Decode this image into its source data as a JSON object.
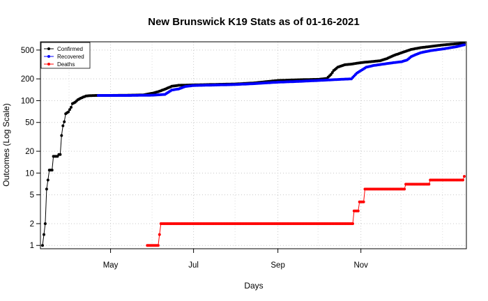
{
  "chart_data": {
    "type": "line",
    "title": "New Brunswick K19 Stats as of 01-16-2021",
    "xlabel": "Days",
    "ylabel": "Outcomes (Log Scale)",
    "y_scale": "log",
    "ylim": [
      0.9,
      650
    ],
    "xlim": [
      "2020-03-12",
      "2021-01-16"
    ],
    "grid": true,
    "legend_position": "top-left",
    "x_ticks": [
      {
        "date": "2020-05-01",
        "label": "May"
      },
      {
        "date": "2020-07-01",
        "label": "Jul"
      },
      {
        "date": "2020-09-01",
        "label": "Sep"
      },
      {
        "date": "2020-11-01",
        "label": "Nov"
      }
    ],
    "y_ticks": [
      1,
      2,
      5,
      10,
      20,
      50,
      100,
      200,
      500
    ],
    "series": [
      {
        "name": "Confirmed",
        "color": "#000000",
        "points": [
          [
            "2020-03-12",
            1
          ],
          [
            "2020-03-14",
            2
          ],
          [
            "2020-03-15",
            6
          ],
          [
            "2020-03-16",
            8
          ],
          [
            "2020-03-17",
            11
          ],
          [
            "2020-03-19",
            11
          ],
          [
            "2020-03-20",
            17
          ],
          [
            "2020-03-23",
            17
          ],
          [
            "2020-03-24",
            18
          ],
          [
            "2020-03-25",
            18
          ],
          [
            "2020-03-26",
            33
          ],
          [
            "2020-03-27",
            45
          ],
          [
            "2020-03-28",
            51
          ],
          [
            "2020-03-29",
            66
          ],
          [
            "2020-03-31",
            70
          ],
          [
            "2020-04-02",
            81
          ],
          [
            "2020-04-03",
            91
          ],
          [
            "2020-04-05",
            95
          ],
          [
            "2020-04-07",
            103
          ],
          [
            "2020-04-09",
            108
          ],
          [
            "2020-04-11",
            112
          ],
          [
            "2020-04-13",
            116
          ],
          [
            "2020-04-15",
            117
          ],
          [
            "2020-04-20",
            118
          ],
          [
            "2020-05-01",
            118
          ],
          [
            "2020-05-15",
            119
          ],
          [
            "2020-05-25",
            120
          ],
          [
            "2020-06-01",
            127
          ],
          [
            "2020-06-05",
            133
          ],
          [
            "2020-06-10",
            144
          ],
          [
            "2020-06-15",
            158
          ],
          [
            "2020-06-20",
            163
          ],
          [
            "2020-07-01",
            165
          ],
          [
            "2020-07-20",
            168
          ],
          [
            "2020-08-01",
            170
          ],
          [
            "2020-08-15",
            176
          ],
          [
            "2020-09-01",
            190
          ],
          [
            "2020-09-15",
            194
          ],
          [
            "2020-10-01",
            197
          ],
          [
            "2020-10-07",
            203
          ],
          [
            "2020-10-10",
            230
          ],
          [
            "2020-10-12",
            260
          ],
          [
            "2020-10-15",
            290
          ],
          [
            "2020-10-20",
            313
          ],
          [
            "2020-10-25",
            320
          ],
          [
            "2020-11-01",
            335
          ],
          [
            "2020-11-08",
            345
          ],
          [
            "2020-11-15",
            356
          ],
          [
            "2020-11-20",
            380
          ],
          [
            "2020-11-25",
            420
          ],
          [
            "2020-12-01",
            460
          ],
          [
            "2020-12-08",
            510
          ],
          [
            "2020-12-15",
            540
          ],
          [
            "2020-12-22",
            560
          ],
          [
            "2021-01-01",
            590
          ],
          [
            "2021-01-10",
            610
          ],
          [
            "2021-01-16",
            620
          ]
        ]
      },
      {
        "name": "Recovered",
        "color": "#0000ff",
        "points": [
          [
            "2020-04-22",
            118
          ],
          [
            "2020-05-01",
            118
          ],
          [
            "2020-05-15",
            118
          ],
          [
            "2020-06-01",
            119
          ],
          [
            "2020-06-10",
            122
          ],
          [
            "2020-06-15",
            140
          ],
          [
            "2020-06-20",
            145
          ],
          [
            "2020-06-25",
            157
          ],
          [
            "2020-07-01",
            162
          ],
          [
            "2020-07-15",
            164
          ],
          [
            "2020-08-01",
            167
          ],
          [
            "2020-08-15",
            172
          ],
          [
            "2020-09-01",
            180
          ],
          [
            "2020-09-15",
            184
          ],
          [
            "2020-10-01",
            190
          ],
          [
            "2020-10-15",
            196
          ],
          [
            "2020-10-25",
            200
          ],
          [
            "2020-10-29",
            240
          ],
          [
            "2020-11-01",
            260
          ],
          [
            "2020-11-05",
            290
          ],
          [
            "2020-11-10",
            305
          ],
          [
            "2020-11-15",
            315
          ],
          [
            "2020-11-25",
            335
          ],
          [
            "2020-12-01",
            345
          ],
          [
            "2020-12-05",
            365
          ],
          [
            "2020-12-08",
            405
          ],
          [
            "2020-12-11",
            430
          ],
          [
            "2020-12-15",
            460
          ],
          [
            "2020-12-22",
            490
          ],
          [
            "2021-01-01",
            520
          ],
          [
            "2021-01-10",
            555
          ],
          [
            "2021-01-16",
            590
          ]
        ]
      },
      {
        "name": "Deaths",
        "color": "#ff0000",
        "points": [
          [
            "2020-05-28",
            1
          ],
          [
            "2020-06-05",
            1
          ],
          [
            "2020-06-07",
            2
          ],
          [
            "2020-10-26",
            2
          ],
          [
            "2020-10-27",
            3
          ],
          [
            "2020-10-30",
            3
          ],
          [
            "2020-10-31",
            4
          ],
          [
            "2020-11-03",
            4
          ],
          [
            "2020-11-04",
            6
          ],
          [
            "2020-12-03",
            6
          ],
          [
            "2020-12-04",
            7
          ],
          [
            "2020-12-21",
            7
          ],
          [
            "2020-12-22",
            8
          ],
          [
            "2021-01-15",
            8
          ],
          [
            "2021-01-16",
            9
          ]
        ]
      }
    ]
  }
}
